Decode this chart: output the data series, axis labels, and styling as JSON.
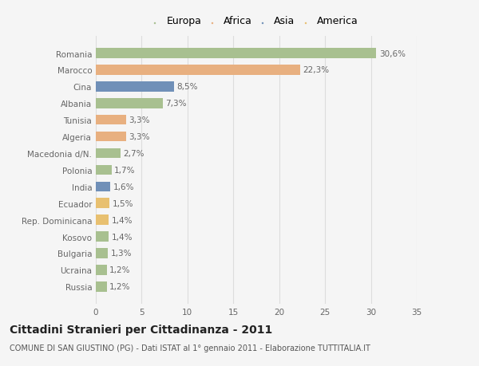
{
  "categories": [
    "Russia",
    "Ucraina",
    "Bulgaria",
    "Kosovo",
    "Rep. Dominicana",
    "Ecuador",
    "India",
    "Polonia",
    "Macedonia d/N.",
    "Algeria",
    "Tunisia",
    "Albania",
    "Cina",
    "Marocco",
    "Romania"
  ],
  "values": [
    1.2,
    1.2,
    1.3,
    1.4,
    1.4,
    1.5,
    1.6,
    1.7,
    2.7,
    3.3,
    3.3,
    7.3,
    8.5,
    22.3,
    30.6
  ],
  "labels": [
    "1,2%",
    "1,2%",
    "1,3%",
    "1,4%",
    "1,4%",
    "1,5%",
    "1,6%",
    "1,7%",
    "2,7%",
    "3,3%",
    "3,3%",
    "7,3%",
    "8,5%",
    "22,3%",
    "30,6%"
  ],
  "colors": [
    "#a8c090",
    "#a8c090",
    "#a8c090",
    "#a8c090",
    "#e8c070",
    "#e8c070",
    "#7090b8",
    "#a8c090",
    "#a8c090",
    "#e8b080",
    "#e8b080",
    "#a8c090",
    "#7090b8",
    "#e8b080",
    "#a8c090"
  ],
  "legend_labels": [
    "Europa",
    "Africa",
    "Asia",
    "America"
  ],
  "legend_colors": [
    "#a8c090",
    "#e8b080",
    "#7090b8",
    "#e8c070"
  ],
  "title": "Cittadini Stranieri per Cittadinanza - 2011",
  "subtitle": "COMUNE DI SAN GIUSTINO (PG) - Dati ISTAT al 1° gennaio 2011 - Elaborazione TUTTITALIA.IT",
  "xlim": [
    0,
    35
  ],
  "xticks": [
    0,
    5,
    10,
    15,
    20,
    25,
    30,
    35
  ],
  "background_color": "#f5f5f5",
  "grid_color": "#dddddd",
  "bar_height": 0.6,
  "label_fontsize": 7.5,
  "tick_fontsize": 7.5,
  "title_fontsize": 10,
  "subtitle_fontsize": 7
}
